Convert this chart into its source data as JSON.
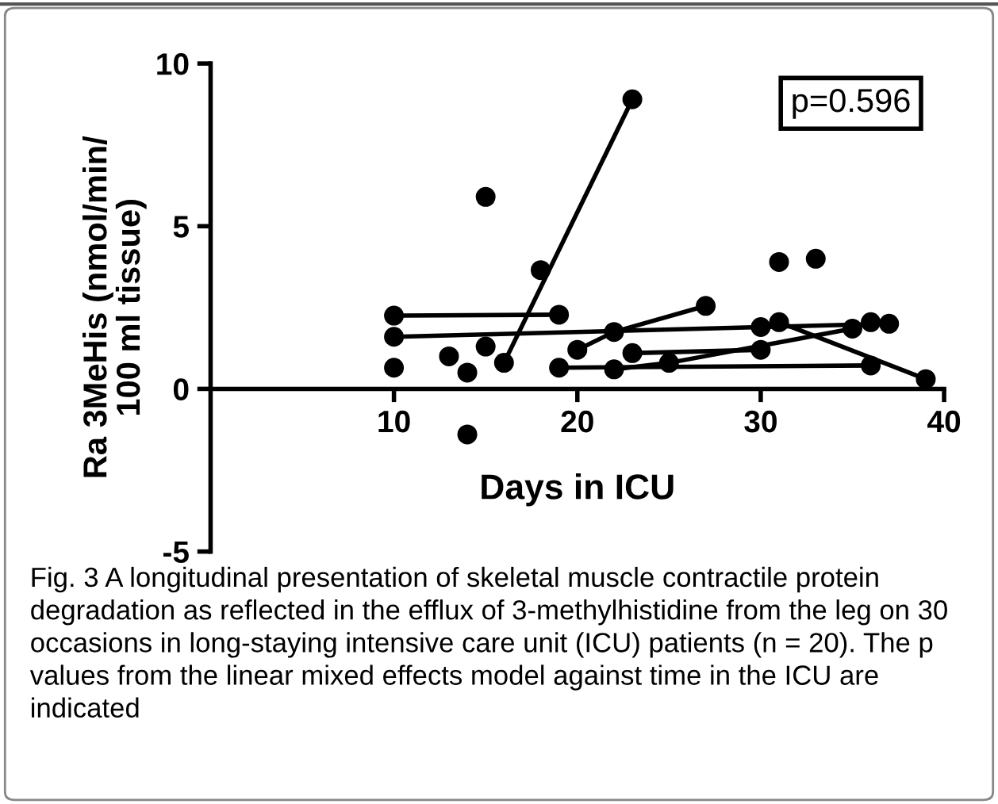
{
  "chart_data": {
    "type": "line",
    "xlabel": "Days in ICU",
    "ylabel": "Ra 3MeHis (nmol/min/\n100 ml tissue)",
    "xlim": [
      0,
      40
    ],
    "xticks": [
      10,
      20,
      30,
      40
    ],
    "ylim": [
      -5,
      10
    ],
    "yticks": [
      -5,
      0,
      5,
      10
    ],
    "grid": false,
    "marker": "circle",
    "line_style": "solid",
    "series": [
      {
        "color": "#000000",
        "x": [
          10,
          19
        ],
        "values": [
          2.25,
          2.28
        ]
      },
      {
        "color": "#000000",
        "x": [
          10,
          30,
          37
        ],
        "values": [
          1.6,
          1.9,
          2.0
        ]
      },
      {
        "color": "#000000",
        "x": [
          16,
          23
        ],
        "values": [
          0.8,
          8.9
        ]
      },
      {
        "color": "#000000",
        "x": [
          20,
          22,
          27
        ],
        "values": [
          1.2,
          1.75,
          2.55
        ]
      },
      {
        "color": "#000000",
        "x": [
          19,
          36
        ],
        "values": [
          0.65,
          0.72
        ]
      },
      {
        "color": "#000000",
        "x": [
          22,
          25,
          35
        ],
        "values": [
          0.6,
          0.8,
          1.85
        ]
      },
      {
        "color": "#000000",
        "x": [
          23,
          30
        ],
        "values": [
          1.1,
          1.2
        ]
      },
      {
        "color": "#000000",
        "x": [
          31,
          39
        ],
        "values": [
          2.05,
          0.3
        ]
      },
      {
        "type": "scatter",
        "color": "#000000",
        "x": [
          10,
          13,
          14,
          15,
          15,
          14,
          18,
          31,
          33,
          36
        ],
        "values": [
          0.65,
          1.0,
          0.5,
          1.3,
          5.9,
          -1.4,
          3.65,
          3.9,
          4.0,
          2.05
        ]
      }
    ],
    "annotations": [
      "p=0.596",
      "Fig. 3 A longitudinal presentation of skeletal muscle contractile protein degradation as reflected in the efflux of 3-methylhistidine from the leg on 30 occasions in long-staying intensive care unit (ICU) patients (n = 20). The p values from the linear mixed effects model against time in the ICU are indicated"
    ]
  }
}
